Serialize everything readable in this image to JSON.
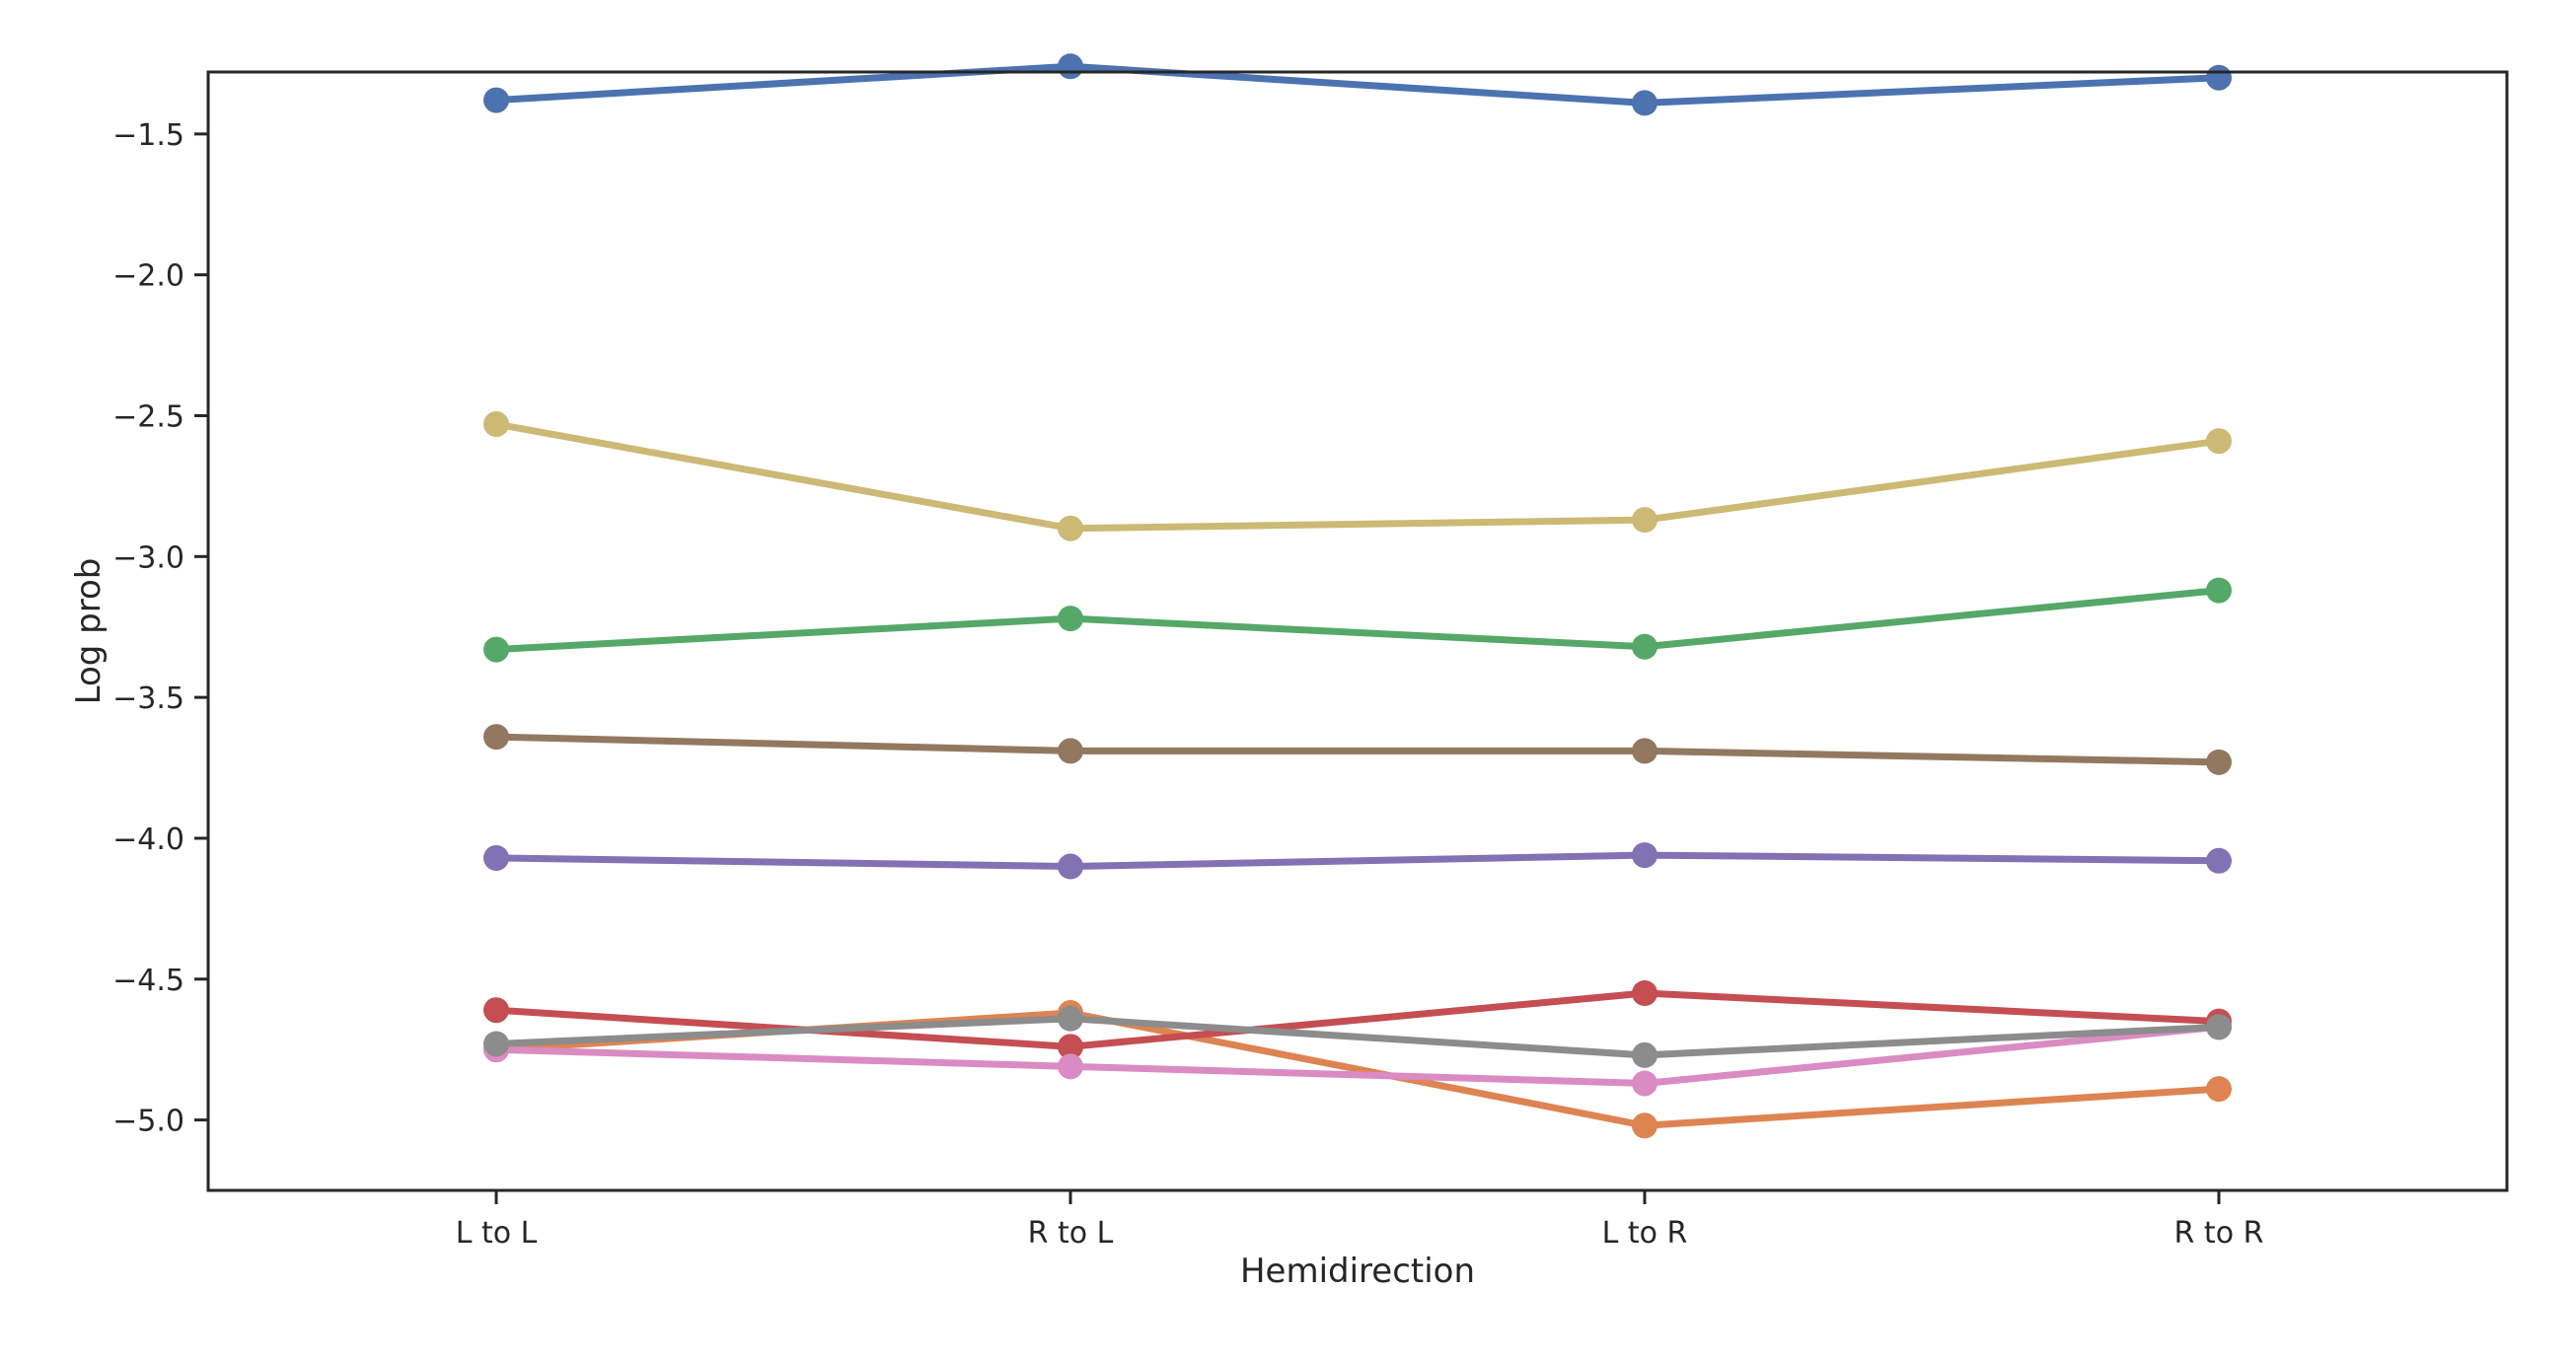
{
  "chart_data": {
    "type": "line",
    "title": "",
    "xlabel": "Hemidirection",
    "ylabel": "Log prob",
    "categories": [
      "L to L",
      "R to L",
      "L to R",
      "R to R"
    ],
    "yticks": [
      -5.0,
      -4.5,
      -4.0,
      -3.5,
      -3.0,
      -2.5,
      -2.0,
      -1.5
    ],
    "ytick_labels": [
      "−5.0",
      "−4.5",
      "−4.0",
      "−3.5",
      "−3.0",
      "−2.5",
      "−2.0",
      "−1.5"
    ],
    "ylim": [
      -5.25,
      -1.28
    ],
    "grid": false,
    "legend": "none",
    "series": [
      {
        "color": "#4c72b0",
        "values": [
          -1.38,
          -1.26,
          -1.39,
          -1.3
        ]
      },
      {
        "color": "#dd8452",
        "values": [
          -4.75,
          -4.62,
          -5.02,
          -4.89
        ]
      },
      {
        "color": "#55a868",
        "values": [
          -3.33,
          -3.22,
          -3.32,
          -3.12
        ]
      },
      {
        "color": "#c44e52",
        "values": [
          -4.61,
          -4.74,
          -4.55,
          -4.65
        ]
      },
      {
        "color": "#8172b3",
        "values": [
          -4.07,
          -4.1,
          -4.06,
          -4.08
        ]
      },
      {
        "color": "#937860",
        "values": [
          -3.64,
          -3.69,
          -3.69,
          -3.73
        ]
      },
      {
        "color": "#da8bc3",
        "values": [
          -4.75,
          -4.81,
          -4.87,
          -4.67
        ]
      },
      {
        "color": "#8c8c8c",
        "values": [
          -4.73,
          -4.64,
          -4.77,
          -4.67
        ]
      },
      {
        "color": "#ccb974",
        "values": [
          -2.53,
          -2.9,
          -2.87,
          -2.59
        ]
      }
    ]
  }
}
